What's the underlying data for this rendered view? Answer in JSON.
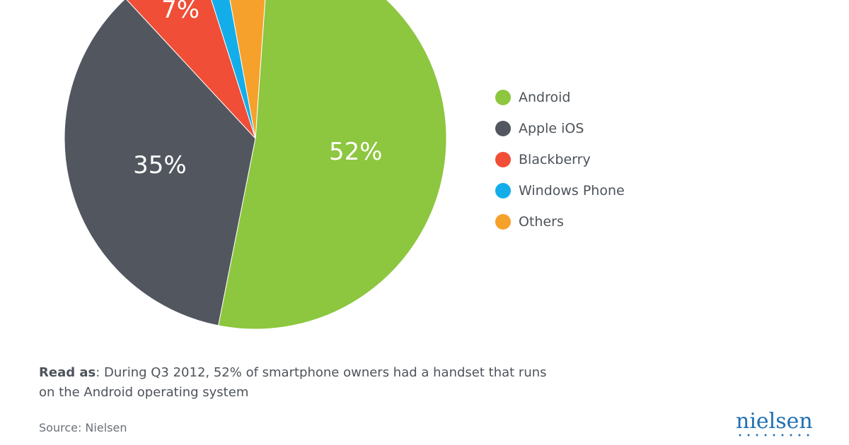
{
  "chart_data": {
    "type": "pie",
    "title": "",
    "slices": [
      {
        "label": "Android",
        "value": 52,
        "display": "52%",
        "color": "#8dc63f"
      },
      {
        "label": "Apple iOS",
        "value": 35,
        "display": "35%",
        "color": "#52565f"
      },
      {
        "label": "Blackberry",
        "value": 7,
        "display": "7%",
        "color": "#f04e37"
      },
      {
        "label": "Windows Phone",
        "value": 2,
        "display": "2%",
        "color": "#13aee9"
      },
      {
        "label": "Others",
        "value": 4,
        "display": "",
        "color": "#f6a12c"
      }
    ],
    "legend_position": "right"
  },
  "legend": [
    {
      "label": "Android",
      "color": "#8dc63f"
    },
    {
      "label": "Apple iOS",
      "color": "#52565f"
    },
    {
      "label": "Blackberry",
      "color": "#f04e37"
    },
    {
      "label": "Windows Phone",
      "color": "#13aee9"
    },
    {
      "label": "Others",
      "color": "#f6a12c"
    }
  ],
  "read_as": {
    "prefix": "Read as",
    "text": ": During Q3 2012, 52% of smartphone owners had a handset that runs on the Android operating system"
  },
  "source": "Source: Nielsen",
  "logo": {
    "text": "nielsen",
    "color": "#1f6fb2"
  }
}
